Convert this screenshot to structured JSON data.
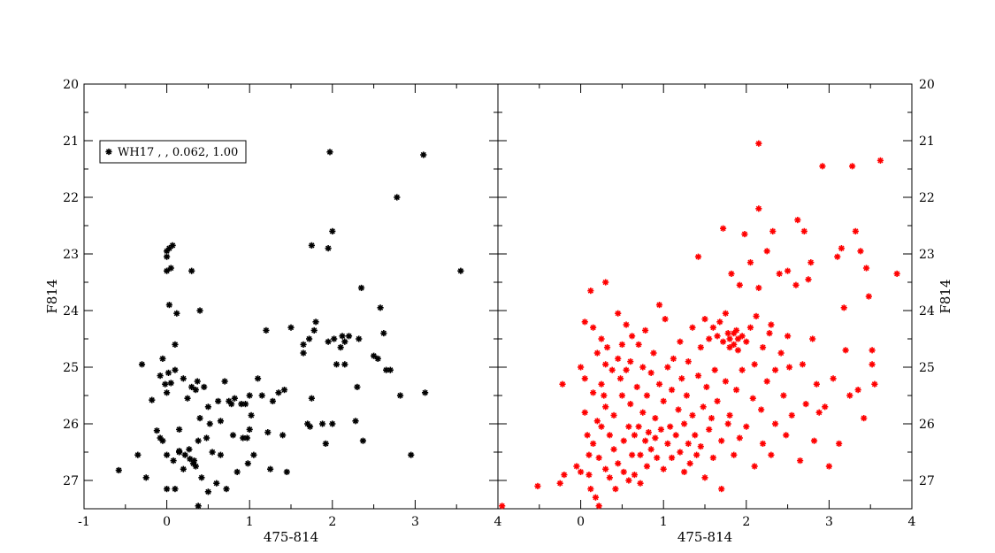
{
  "chart_data": [
    {
      "type": "scatter",
      "xlabel": "475-814",
      "ylabel": "F814",
      "xlim": [
        -1,
        4
      ],
      "ylim": [
        27.5,
        20
      ],
      "y_inverted": true,
      "x_ticks": [
        "-1",
        "0",
        "1",
        "2",
        "3",
        "4"
      ],
      "y_ticks": [
        "20",
        "21",
        "22",
        "23",
        "24",
        "25",
        "26",
        "27"
      ],
      "legend": {
        "label": "WH17   ,   , 0.062, 1.00",
        "placement": "top-left"
      },
      "color": "#000000",
      "points": [
        [
          -0.58,
          26.82
        ],
        [
          -0.35,
          26.55
        ],
        [
          -0.3,
          24.95
        ],
        [
          -0.25,
          26.95
        ],
        [
          -0.18,
          25.58
        ],
        [
          -0.12,
          26.12
        ],
        [
          -0.08,
          26.25
        ],
        [
          -0.08,
          25.15
        ],
        [
          -0.05,
          26.3
        ],
        [
          -0.02,
          25.3
        ],
        [
          0.0,
          26.55
        ],
        [
          0.0,
          27.15
        ],
        [
          -0.05,
          24.85
        ],
        [
          0.0,
          25.45
        ],
        [
          0.0,
          23.3
        ],
        [
          0.0,
          23.05
        ],
        [
          0.0,
          22.95
        ],
        [
          0.02,
          25.1
        ],
        [
          0.05,
          25.28
        ],
        [
          0.03,
          23.9
        ],
        [
          0.05,
          23.25
        ],
        [
          0.03,
          22.9
        ],
        [
          0.07,
          22.85
        ],
        [
          0.08,
          26.65
        ],
        [
          0.1,
          24.6
        ],
        [
          0.1,
          25.05
        ],
        [
          0.1,
          27.15
        ],
        [
          0.12,
          24.05
        ],
        [
          0.15,
          26.5
        ],
        [
          0.15,
          26.1
        ],
        [
          0.2,
          25.2
        ],
        [
          0.2,
          26.8
        ],
        [
          0.22,
          26.55
        ],
        [
          0.25,
          25.55
        ],
        [
          0.27,
          26.45
        ],
        [
          0.3,
          25.35
        ],
        [
          0.32,
          26.7
        ],
        [
          0.3,
          23.3
        ],
        [
          0.33,
          26.65
        ],
        [
          0.35,
          26.75
        ],
        [
          0.35,
          25.4
        ],
        [
          0.37,
          25.25
        ],
        [
          0.38,
          26.3
        ],
        [
          0.4,
          25.9
        ],
        [
          0.4,
          24.0
        ],
        [
          0.42,
          26.95
        ],
        [
          0.45,
          25.35
        ],
        [
          0.48,
          26.25
        ],
        [
          0.5,
          25.7
        ],
        [
          0.5,
          27.2
        ],
        [
          0.52,
          26.0
        ],
        [
          0.55,
          26.5
        ],
        [
          0.6,
          27.05
        ],
        [
          0.62,
          25.6
        ],
        [
          0.65,
          25.95
        ],
        [
          0.65,
          26.55
        ],
        [
          0.7,
          25.25
        ],
        [
          0.72,
          27.15
        ],
        [
          0.75,
          25.6
        ],
        [
          0.78,
          25.65
        ],
        [
          0.8,
          26.2
        ],
        [
          0.82,
          25.55
        ],
        [
          0.85,
          26.85
        ],
        [
          0.9,
          25.65
        ],
        [
          0.92,
          26.25
        ],
        [
          0.95,
          25.65
        ],
        [
          0.97,
          26.25
        ],
        [
          0.98,
          26.7
        ],
        [
          1.0,
          25.5
        ],
        [
          1.0,
          26.1
        ],
        [
          1.02,
          25.85
        ],
        [
          1.05,
          26.55
        ],
        [
          1.1,
          25.2
        ],
        [
          1.15,
          25.5
        ],
        [
          1.2,
          24.35
        ],
        [
          1.22,
          26.15
        ],
        [
          1.25,
          26.8
        ],
        [
          1.28,
          25.6
        ],
        [
          1.35,
          25.45
        ],
        [
          1.4,
          26.2
        ],
        [
          1.42,
          25.4
        ],
        [
          1.45,
          26.85
        ],
        [
          1.5,
          24.3
        ],
        [
          1.65,
          24.6
        ],
        [
          1.65,
          24.75
        ],
        [
          1.7,
          26.0
        ],
        [
          1.72,
          24.5
        ],
        [
          1.73,
          26.05
        ],
        [
          1.75,
          25.55
        ],
        [
          1.75,
          22.85
        ],
        [
          1.78,
          24.35
        ],
        [
          1.8,
          24.2
        ],
        [
          1.88,
          26.0
        ],
        [
          1.92,
          26.35
        ],
        [
          1.95,
          22.9
        ],
        [
          1.95,
          24.55
        ],
        [
          1.97,
          21.2
        ],
        [
          2.0,
          22.6
        ],
        [
          2.0,
          26.0
        ],
        [
          2.02,
          24.5
        ],
        [
          2.05,
          24.95
        ],
        [
          2.1,
          24.65
        ],
        [
          2.12,
          24.45
        ],
        [
          2.15,
          24.55
        ],
        [
          2.15,
          24.95
        ],
        [
          2.2,
          24.45
        ],
        [
          2.28,
          25.95
        ],
        [
          2.3,
          25.35
        ],
        [
          2.32,
          24.5
        ],
        [
          2.35,
          23.6
        ],
        [
          2.37,
          26.3
        ],
        [
          2.5,
          24.8
        ],
        [
          2.55,
          24.85
        ],
        [
          2.58,
          23.95
        ],
        [
          2.62,
          24.4
        ],
        [
          2.65,
          25.05
        ],
        [
          2.7,
          25.05
        ],
        [
          2.78,
          22.0
        ],
        [
          2.82,
          25.5
        ],
        [
          2.95,
          26.55
        ],
        [
          3.1,
          21.25
        ],
        [
          3.12,
          25.45
        ],
        [
          3.55,
          23.3
        ],
        [
          0.38,
          27.45
        ],
        [
          0.15,
          26.48
        ],
        [
          0.28,
          26.62
        ]
      ]
    },
    {
      "type": "scatter",
      "xlabel": "475-814",
      "ylabel": "F814",
      "xlim": [
        -1,
        4
      ],
      "ylim": [
        27.5,
        20
      ],
      "y_inverted": true,
      "x_ticks": [
        "0",
        "1",
        "2",
        "3",
        "4"
      ],
      "y_ticks": [
        "20",
        "21",
        "22",
        "23",
        "24",
        "25",
        "26",
        "27"
      ],
      "color": "#ff0000",
      "points": [
        [
          -0.95,
          27.45
        ],
        [
          -0.52,
          27.1
        ],
        [
          -0.25,
          27.05
        ],
        [
          -0.2,
          26.9
        ],
        [
          -0.05,
          26.75
        ],
        [
          0.0,
          26.85
        ],
        [
          -0.22,
          25.3
        ],
        [
          0.0,
          25.0
        ],
        [
          0.05,
          24.2
        ],
        [
          0.05,
          25.2
        ],
        [
          0.05,
          25.8
        ],
        [
          0.08,
          26.2
        ],
        [
          0.1,
          26.55
        ],
        [
          0.1,
          26.9
        ],
        [
          0.12,
          27.15
        ],
        [
          0.12,
          23.65
        ],
        [
          0.15,
          24.3
        ],
        [
          0.15,
          25.45
        ],
        [
          0.15,
          26.35
        ],
        [
          0.18,
          27.3
        ],
        [
          0.2,
          24.75
        ],
        [
          0.2,
          25.95
        ],
        [
          0.22,
          26.6
        ],
        [
          0.22,
          27.45
        ],
        [
          0.25,
          24.5
        ],
        [
          0.25,
          25.3
        ],
        [
          0.25,
          26.05
        ],
        [
          0.28,
          25.5
        ],
        [
          0.3,
          23.5
        ],
        [
          0.3,
          24.95
        ],
        [
          0.3,
          25.7
        ],
        [
          0.3,
          26.8
        ],
        [
          0.32,
          24.65
        ],
        [
          0.35,
          26.2
        ],
        [
          0.35,
          26.95
        ],
        [
          0.38,
          25.05
        ],
        [
          0.4,
          25.85
        ],
        [
          0.4,
          26.45
        ],
        [
          0.42,
          27.15
        ],
        [
          0.45,
          24.05
        ],
        [
          0.45,
          24.85
        ],
        [
          0.45,
          26.7
        ],
        [
          0.48,
          25.2
        ],
        [
          0.5,
          24.6
        ],
        [
          0.5,
          25.5
        ],
        [
          0.52,
          26.3
        ],
        [
          0.52,
          26.85
        ],
        [
          0.55,
          24.25
        ],
        [
          0.55,
          25.05
        ],
        [
          0.58,
          26.05
        ],
        [
          0.58,
          27.0
        ],
        [
          0.6,
          24.9
        ],
        [
          0.6,
          25.65
        ],
        [
          0.62,
          26.55
        ],
        [
          0.62,
          24.45
        ],
        [
          0.65,
          26.2
        ],
        [
          0.65,
          26.9
        ],
        [
          0.68,
          25.35
        ],
        [
          0.7,
          24.6
        ],
        [
          0.7,
          26.05
        ],
        [
          0.72,
          26.55
        ],
        [
          0.72,
          27.05
        ],
        [
          0.75,
          25.0
        ],
        [
          0.75,
          25.8
        ],
        [
          0.78,
          24.35
        ],
        [
          0.78,
          26.3
        ],
        [
          0.8,
          25.5
        ],
        [
          0.8,
          26.75
        ],
        [
          0.82,
          26.15
        ],
        [
          0.85,
          25.1
        ],
        [
          0.85,
          26.45
        ],
        [
          0.88,
          24.75
        ],
        [
          0.9,
          25.9
        ],
        [
          0.9,
          26.25
        ],
        [
          0.92,
          26.6
        ],
        [
          0.95,
          23.9
        ],
        [
          0.95,
          25.3
        ],
        [
          0.97,
          26.1
        ],
        [
          1.0,
          26.8
        ],
        [
          1.0,
          25.6
        ],
        [
          1.02,
          24.15
        ],
        [
          1.05,
          26.35
        ],
        [
          1.05,
          25.0
        ],
        [
          1.08,
          26.05
        ],
        [
          1.1,
          25.4
        ],
        [
          1.1,
          26.6
        ],
        [
          1.12,
          24.85
        ],
        [
          1.15,
          26.2
        ],
        [
          1.18,
          25.75
        ],
        [
          1.2,
          26.5
        ],
        [
          1.2,
          24.55
        ],
        [
          1.22,
          25.2
        ],
        [
          1.25,
          26.0
        ],
        [
          1.25,
          26.85
        ],
        [
          1.28,
          25.5
        ],
        [
          1.3,
          24.9
        ],
        [
          1.3,
          26.35
        ],
        [
          1.32,
          26.7
        ],
        [
          1.35,
          25.85
        ],
        [
          1.35,
          24.3
        ],
        [
          1.38,
          26.2
        ],
        [
          1.4,
          26.55
        ],
        [
          1.42,
          25.15
        ],
        [
          1.42,
          23.05
        ],
        [
          1.45,
          26.4
        ],
        [
          1.45,
          24.65
        ],
        [
          1.48,
          25.7
        ],
        [
          1.5,
          26.95
        ],
        [
          1.5,
          24.15
        ],
        [
          1.52,
          25.35
        ],
        [
          1.55,
          26.1
        ],
        [
          1.55,
          24.5
        ],
        [
          1.58,
          25.9
        ],
        [
          1.6,
          24.3
        ],
        [
          1.6,
          26.6
        ],
        [
          1.62,
          25.05
        ],
        [
          1.65,
          24.45
        ],
        [
          1.65,
          25.6
        ],
        [
          1.68,
          24.2
        ],
        [
          1.7,
          26.3
        ],
        [
          1.7,
          27.15
        ],
        [
          1.72,
          24.55
        ],
        [
          1.72,
          22.55
        ],
        [
          1.75,
          25.25
        ],
        [
          1.75,
          24.05
        ],
        [
          1.78,
          24.4
        ],
        [
          1.78,
          26.0
        ],
        [
          1.8,
          24.5
        ],
        [
          1.8,
          24.65
        ],
        [
          1.8,
          25.85
        ],
        [
          1.82,
          23.35
        ],
        [
          1.85,
          24.6
        ],
        [
          1.85,
          24.4
        ],
        [
          1.85,
          26.55
        ],
        [
          1.88,
          24.35
        ],
        [
          1.88,
          25.4
        ],
        [
          1.9,
          24.5
        ],
        [
          1.9,
          24.7
        ],
        [
          1.92,
          23.55
        ],
        [
          1.92,
          26.25
        ],
        [
          1.95,
          24.45
        ],
        [
          1.95,
          25.05
        ],
        [
          1.98,
          22.65
        ],
        [
          2.0,
          24.55
        ],
        [
          2.0,
          26.05
        ],
        [
          2.05,
          23.15
        ],
        [
          2.05,
          24.3
        ],
        [
          2.08,
          25.55
        ],
        [
          2.1,
          24.95
        ],
        [
          2.1,
          26.75
        ],
        [
          2.12,
          24.1
        ],
        [
          2.15,
          21.05
        ],
        [
          2.15,
          22.2
        ],
        [
          2.15,
          23.6
        ],
        [
          2.18,
          25.75
        ],
        [
          2.2,
          26.35
        ],
        [
          2.2,
          24.65
        ],
        [
          2.25,
          22.95
        ],
        [
          2.25,
          25.25
        ],
        [
          2.28,
          24.4
        ],
        [
          2.3,
          26.55
        ],
        [
          2.3,
          24.25
        ],
        [
          2.32,
          22.6
        ],
        [
          2.35,
          25.05
        ],
        [
          2.35,
          26.0
        ],
        [
          2.4,
          23.35
        ],
        [
          2.42,
          24.75
        ],
        [
          2.45,
          25.5
        ],
        [
          2.48,
          26.2
        ],
        [
          2.5,
          23.3
        ],
        [
          2.5,
          24.45
        ],
        [
          2.52,
          25.0
        ],
        [
          2.55,
          25.85
        ],
        [
          2.6,
          23.55
        ],
        [
          2.62,
          22.4
        ],
        [
          2.65,
          26.65
        ],
        [
          2.68,
          24.95
        ],
        [
          2.7,
          22.6
        ],
        [
          2.72,
          25.65
        ],
        [
          2.75,
          23.45
        ],
        [
          2.78,
          23.15
        ],
        [
          2.8,
          24.5
        ],
        [
          2.82,
          26.3
        ],
        [
          2.85,
          25.3
        ],
        [
          2.88,
          25.8
        ],
        [
          2.92,
          21.45
        ],
        [
          2.95,
          25.7
        ],
        [
          3.0,
          26.75
        ],
        [
          3.05,
          25.2
        ],
        [
          3.1,
          23.05
        ],
        [
          3.12,
          26.35
        ],
        [
          3.15,
          22.9
        ],
        [
          3.18,
          23.95
        ],
        [
          3.2,
          24.7
        ],
        [
          3.25,
          25.5
        ],
        [
          3.28,
          21.45
        ],
        [
          3.32,
          22.6
        ],
        [
          3.35,
          25.4
        ],
        [
          3.38,
          22.95
        ],
        [
          3.42,
          25.9
        ],
        [
          3.45,
          23.25
        ],
        [
          3.48,
          23.75
        ],
        [
          3.52,
          24.95
        ],
        [
          3.52,
          24.7
        ],
        [
          3.55,
          25.3
        ],
        [
          3.62,
          21.35
        ],
        [
          3.82,
          23.35
        ]
      ]
    }
  ]
}
